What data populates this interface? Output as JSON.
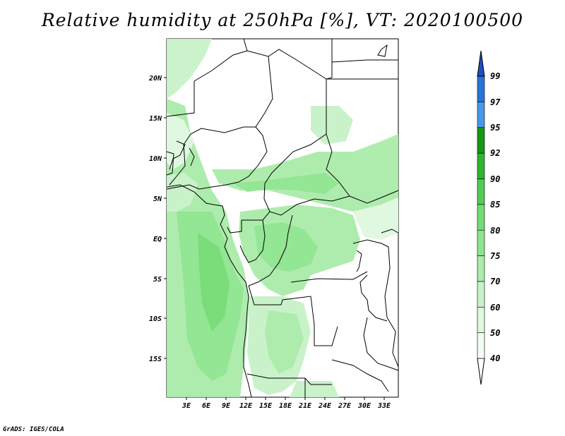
{
  "title": "Relative humidity at 250hPa [%], VT: 2020100500",
  "credit": "GrADS: IGES/COLA",
  "map": {
    "lon_labels": [
      "3E",
      "6E",
      "9E",
      "12E",
      "15E",
      "18E",
      "21E",
      "24E",
      "27E",
      "30E",
      "33E"
    ],
    "lat_labels": [
      "20N",
      "15N",
      "10N",
      "5N",
      "EQ",
      "5S",
      "10S",
      "15S"
    ]
  },
  "colorbar": {
    "levels": [
      "40",
      "50",
      "60",
      "70",
      "75",
      "80",
      "85",
      "90",
      "92",
      "95",
      "97",
      "99"
    ],
    "colors": [
      "#f0fdf0",
      "#dff8df",
      "#c8f2c8",
      "#aaecaa",
      "#8ee58e",
      "#73dc73",
      "#52cc52",
      "#2fb52f",
      "#169716",
      "#4a98e8",
      "#2a74d8",
      "#1f4fbf"
    ]
  }
}
